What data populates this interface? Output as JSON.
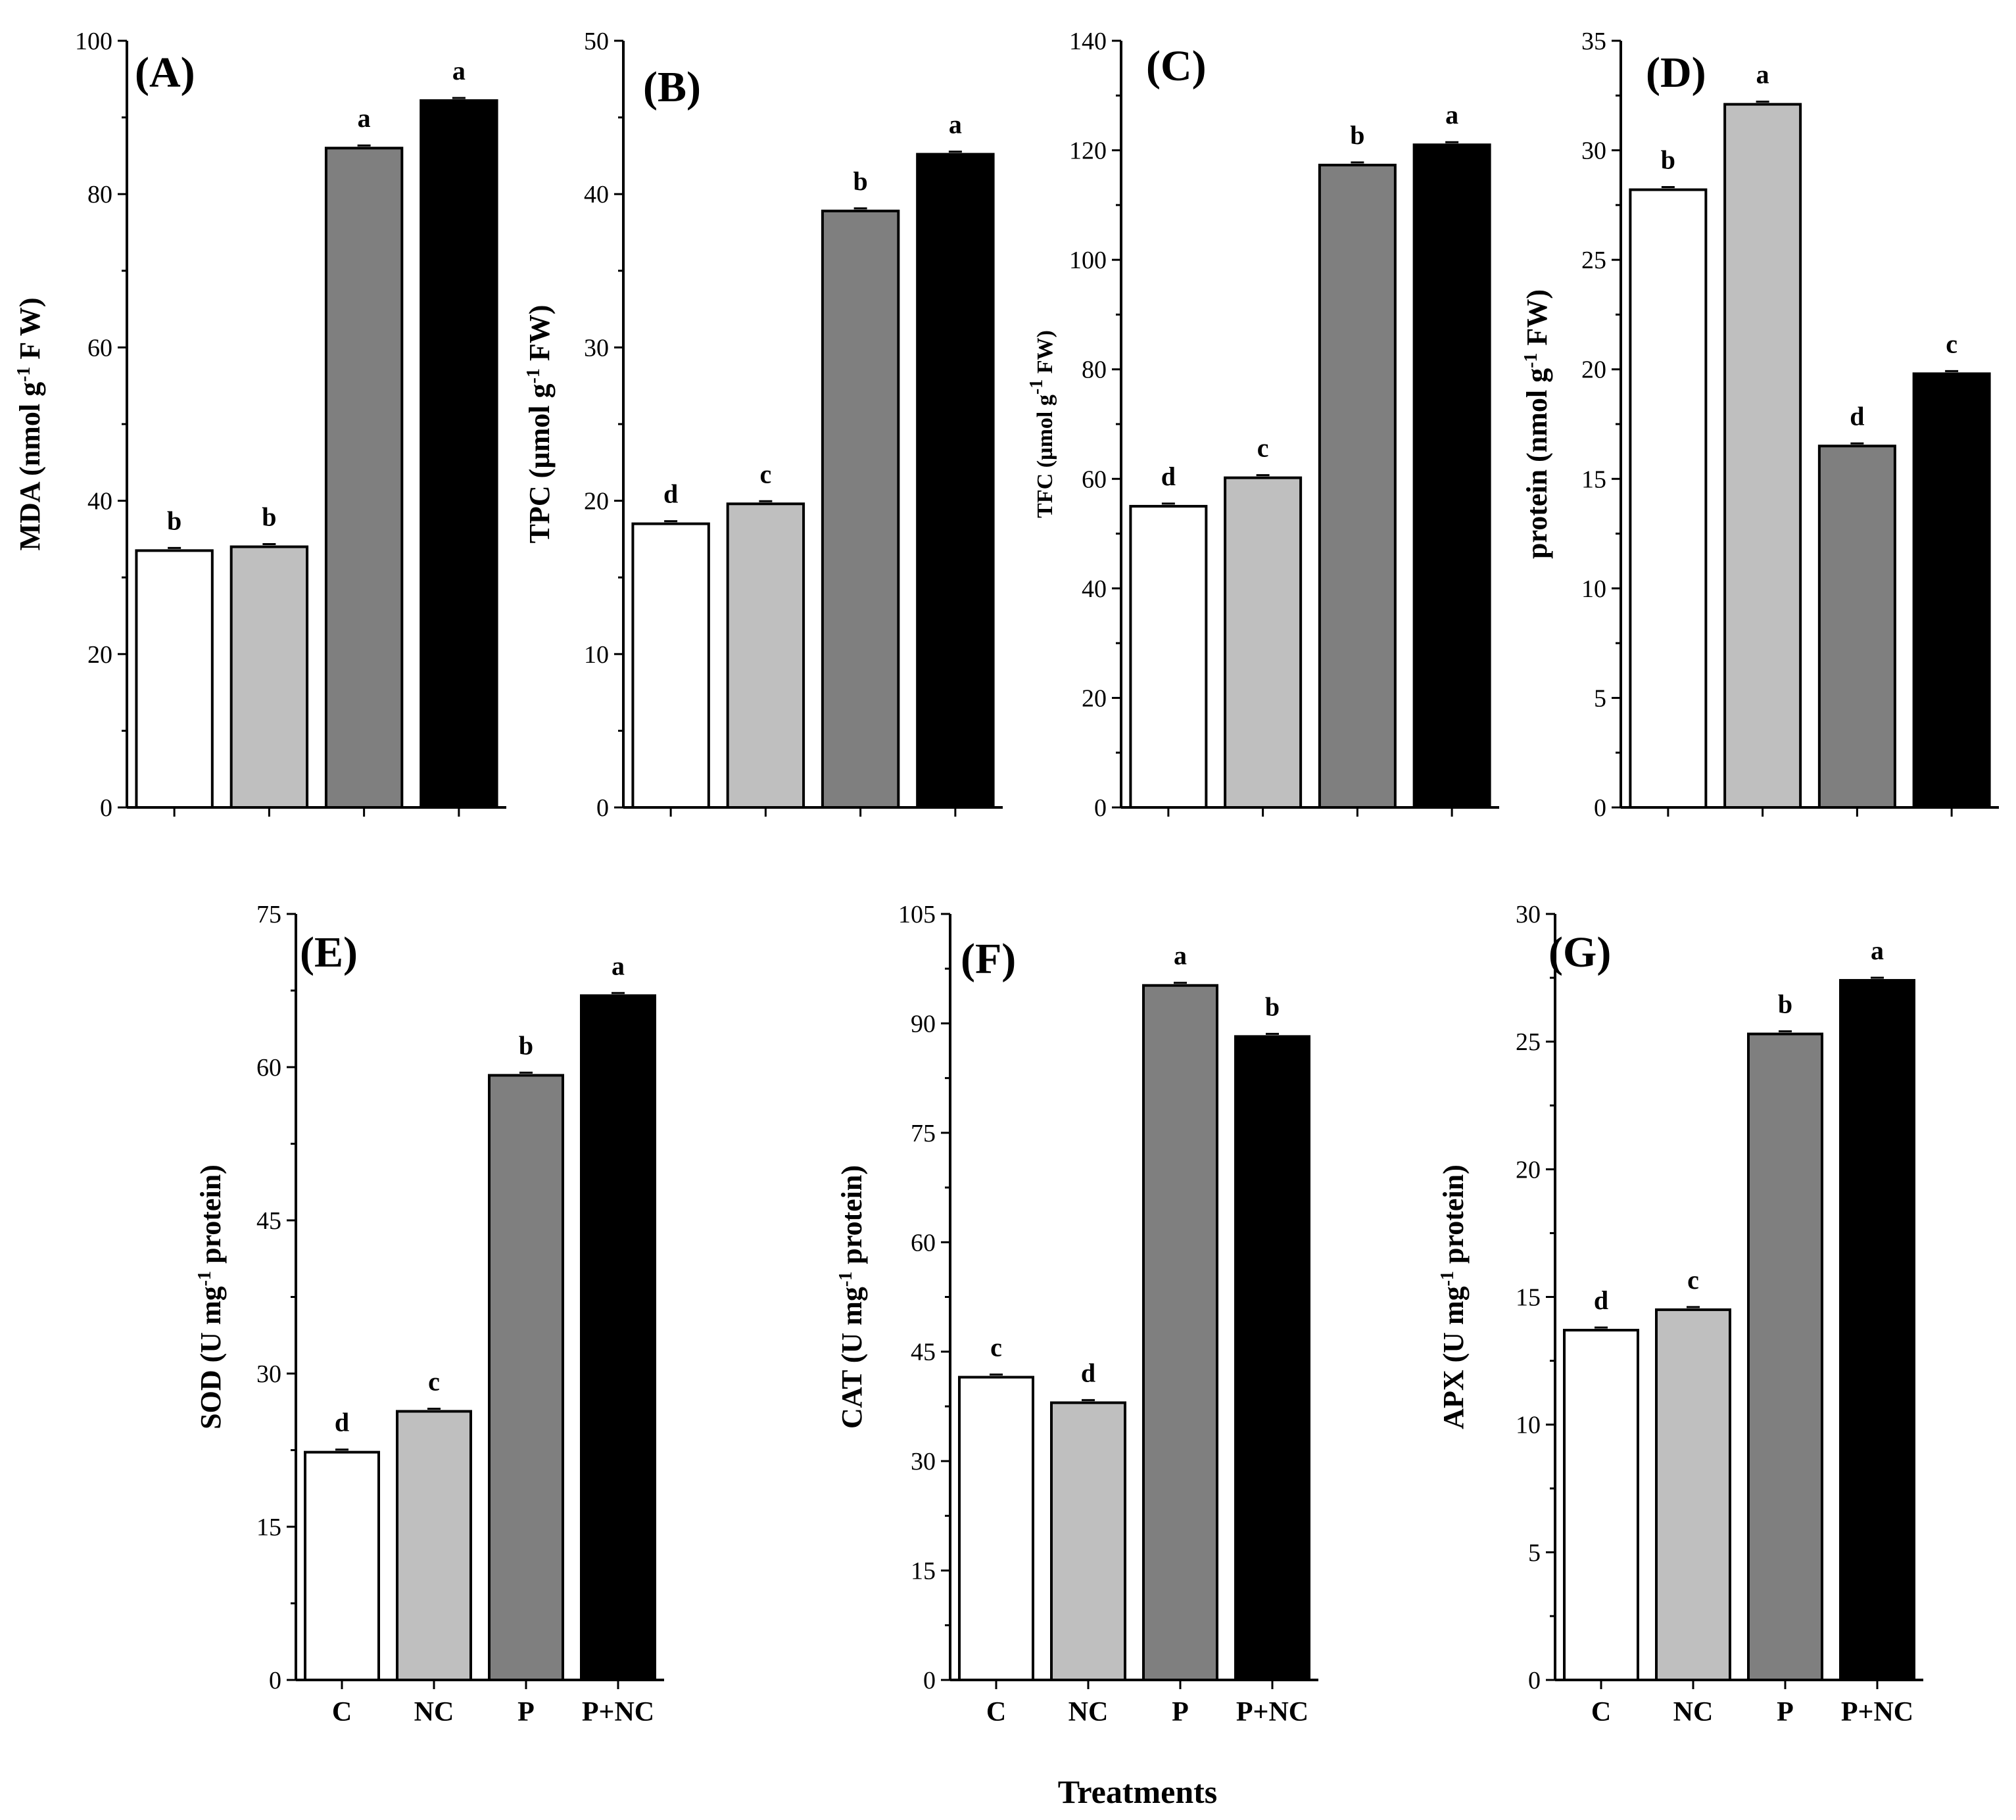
{
  "x_title": "Treatments",
  "chart_data": [
    {
      "panel": "(A)",
      "type": "bar",
      "categories": [
        "C",
        "NC",
        "P",
        "P+NC"
      ],
      "values": [
        33.5,
        34.0,
        86.0,
        92.2
      ],
      "letters": [
        "b",
        "b",
        "a",
        "a"
      ],
      "ylabel": "MDA  (nmol g-1 F W)",
      "ylabel_parts": [
        {
          "t": "MDA  (nmol g"
        },
        {
          "t": "-1",
          "sup": true
        },
        {
          "t": " F W)"
        }
      ],
      "ylim": [
        0,
        100
      ],
      "yticks": [
        0,
        20,
        40,
        60,
        80,
        100
      ],
      "show_categories": false
    },
    {
      "panel": "(B)",
      "type": "bar",
      "categories": [
        "C",
        "NC",
        "P",
        "P+NC"
      ],
      "values": [
        18.5,
        19.8,
        38.9,
        42.6
      ],
      "letters": [
        "d",
        "c",
        "b",
        "a"
      ],
      "ylabel": "TPC (µmol g-1 FW)",
      "ylabel_parts": [
        {
          "t": "TPC (µmol g"
        },
        {
          "t": "-1",
          "sup": true
        },
        {
          "t": " FW)"
        }
      ],
      "ylim": [
        0,
        50
      ],
      "yticks": [
        0,
        10,
        20,
        30,
        40,
        50
      ],
      "show_categories": false
    },
    {
      "panel": "(C)",
      "type": "bar",
      "categories": [
        "C",
        "NC",
        "P",
        "P+NC"
      ],
      "values": [
        55.0,
        60.2,
        117.3,
        121.0
      ],
      "letters": [
        "d",
        "c",
        "b",
        "a"
      ],
      "ylabel": "TFC (µmol g-1 FW)",
      "ylabel_parts": [
        {
          "t": "TFC (µmol g"
        },
        {
          "t": "-1",
          "sup": true
        },
        {
          "t": " FW)"
        }
      ],
      "ylabel_small": true,
      "ylim": [
        0,
        140
      ],
      "yticks": [
        0,
        20,
        40,
        60,
        80,
        100,
        120,
        140
      ],
      "show_categories": false
    },
    {
      "panel": "(D)",
      "type": "bar",
      "categories": [
        "C",
        "NC",
        "P",
        "P+NC"
      ],
      "values": [
        28.2,
        32.1,
        16.5,
        19.8
      ],
      "letters": [
        "b",
        "a",
        "d",
        "c"
      ],
      "ylabel": "protein (nmol g-1 FW)",
      "ylabel_parts": [
        {
          "t": "protein (nmol g"
        },
        {
          "t": "-1",
          "sup": true
        },
        {
          "t": " FW)"
        }
      ],
      "ylim": [
        0,
        35
      ],
      "yticks": [
        0,
        5,
        10,
        15,
        20,
        25,
        30,
        35
      ],
      "show_categories": false
    },
    {
      "panel": "(E)",
      "type": "bar",
      "categories": [
        "C",
        "NC",
        "P",
        "P+NC"
      ],
      "values": [
        22.3,
        26.3,
        59.2,
        67.0
      ],
      "letters": [
        "d",
        "c",
        "b",
        "a"
      ],
      "ylabel": "SOD (U mg-1 protein)",
      "ylabel_parts": [
        {
          "t": "SOD (U mg"
        },
        {
          "t": "-1",
          "sup": true
        },
        {
          "t": " protein)"
        }
      ],
      "ylim": [
        0,
        75
      ],
      "yticks": [
        0,
        15,
        30,
        45,
        60,
        75
      ],
      "show_categories": true
    },
    {
      "panel": "(F)",
      "type": "bar",
      "categories": [
        "C",
        "NC",
        "P",
        "P+NC"
      ],
      "values": [
        41.5,
        38.0,
        95.2,
        88.2
      ],
      "letters": [
        "c",
        "d",
        "a",
        "b"
      ],
      "ylabel": "CAT (U mg-1 protein)",
      "ylabel_parts": [
        {
          "t": "CAT (U mg"
        },
        {
          "t": "-1",
          "sup": true
        },
        {
          "t": " protein)"
        }
      ],
      "ylim": [
        0,
        105
      ],
      "yticks": [
        0,
        15,
        30,
        45,
        60,
        75,
        90,
        105
      ],
      "show_categories": true
    },
    {
      "panel": "(G)",
      "type": "bar",
      "categories": [
        "C",
        "NC",
        "P",
        "P+NC"
      ],
      "values": [
        13.7,
        14.5,
        25.3,
        27.4
      ],
      "letters": [
        "d",
        "c",
        "b",
        "a"
      ],
      "ylabel": "APX (U mg-1 protein)",
      "ylabel_parts": [
        {
          "t": "APX (U mg"
        },
        {
          "t": "-1",
          "sup": true
        },
        {
          "t": " protein)"
        }
      ],
      "ylim": [
        0,
        30
      ],
      "yticks": [
        0,
        5,
        10,
        15,
        20,
        25,
        30
      ],
      "show_categories": true
    }
  ],
  "colors": {
    "C": "#ffffff",
    "NC": "#bfbfbf",
    "P": "#7f7f7f",
    "P+NC": "#000000",
    "axis": "#000000"
  }
}
